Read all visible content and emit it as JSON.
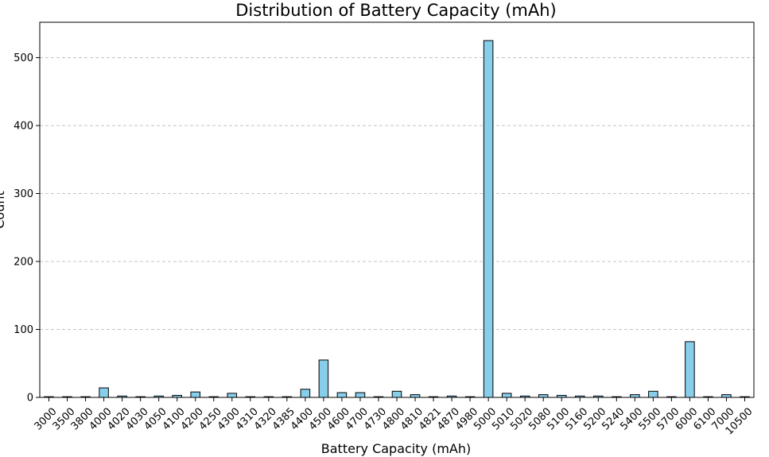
{
  "chart_data": {
    "type": "bar",
    "title": "Distribution of Battery Capacity (mAh)",
    "xlabel": "Battery Capacity (mAh)",
    "ylabel": "Count",
    "categories": [
      "3000",
      "3500",
      "3800",
      "4000",
      "4020",
      "4030",
      "4050",
      "4100",
      "4200",
      "4250",
      "4300",
      "4310",
      "4320",
      "4385",
      "4400",
      "4500",
      "4600",
      "4700",
      "4730",
      "4800",
      "4810",
      "4821",
      "4870",
      "4980",
      "5000",
      "5010",
      "5020",
      "5080",
      "5100",
      "5160",
      "5200",
      "5240",
      "5400",
      "5500",
      "5700",
      "6000",
      "6100",
      "7000",
      "10500"
    ],
    "values": [
      1,
      1,
      1,
      14,
      2,
      1,
      2,
      3,
      8,
      1,
      6,
      1,
      1,
      1,
      12,
      55,
      7,
      7,
      1,
      9,
      4,
      1,
      2,
      1,
      525,
      6,
      2,
      4,
      3,
      2,
      2,
      1,
      4,
      9,
      1,
      82,
      1,
      4,
      1
    ],
    "ylim": [
      0,
      552
    ],
    "yticks": [
      0,
      100,
      200,
      300,
      400,
      500
    ],
    "grid": "y-dashed",
    "colors": {
      "bar_fill": "#87ceeb",
      "bar_edge": "#000000",
      "grid": "#b0b0b0"
    }
  }
}
